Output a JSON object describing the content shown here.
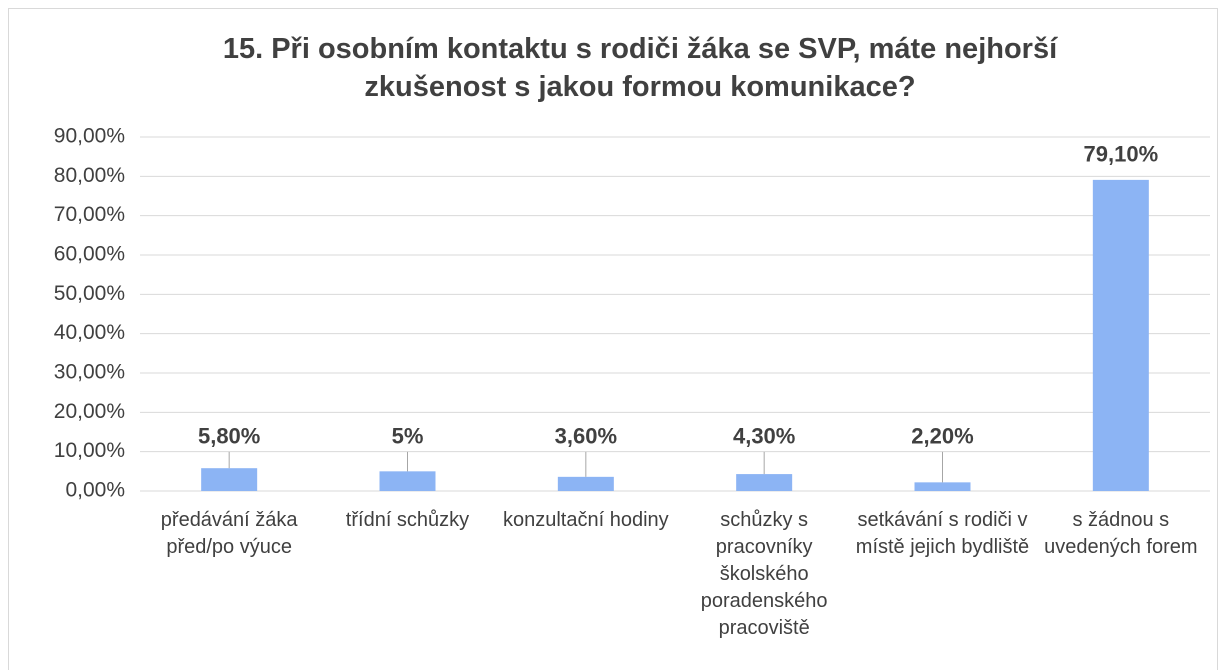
{
  "chart_data": {
    "type": "bar",
    "title": "15. Při osobním kontaktu s rodiči žáka se SVP, máte nejhorší zkušenost s jakou formou komunikace?",
    "categories": [
      "předávání žáka před/po výuce",
      "třídní schůzky",
      "konzultační hodiny",
      "schůzky s pracovníky školského poradenského pracoviště",
      "setkávání s rodiči v místě jejich bydliště",
      "s žádnou s uvedených forem"
    ],
    "values": [
      5.8,
      5,
      3.6,
      4.3,
      2.2,
      79.1
    ],
    "value_labels": [
      "5,80%",
      "5%",
      "3,60%",
      "4,30%",
      "2,20%",
      "79,10%"
    ],
    "color": "#8cb4f4",
    "ylim": [
      0,
      90
    ],
    "yticks": [
      {
        "value": 0,
        "label": "0,00%"
      },
      {
        "value": 10,
        "label": "10,00%"
      },
      {
        "value": 20,
        "label": "20,00%"
      },
      {
        "value": 30,
        "label": "30,00%"
      },
      {
        "value": 40,
        "label": "40,00%"
      },
      {
        "value": 50,
        "label": "50,00%"
      },
      {
        "value": 60,
        "label": "60,00%"
      },
      {
        "value": 70,
        "label": "70,00%"
      },
      {
        "value": 80,
        "label": "80,00%"
      },
      {
        "value": 90,
        "label": "90,00%"
      }
    ],
    "grid": true
  }
}
